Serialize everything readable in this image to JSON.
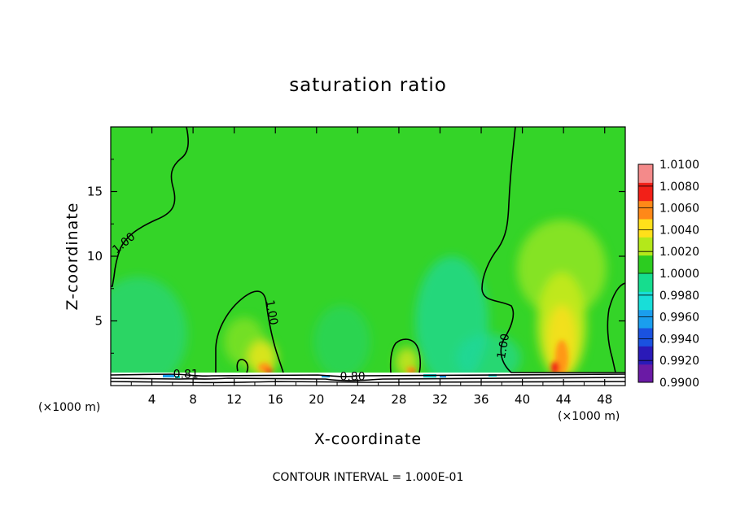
{
  "chart_data": {
    "type": "heatmap",
    "title": "saturation ratio",
    "xlabel": "X-coordinate",
    "ylabel": "Z-coordinate",
    "x_unit_left": "(×1000 m)",
    "x_unit_right": "(×1000 m)",
    "xlim": [
      0,
      50
    ],
    "ylim": [
      0,
      20
    ],
    "x_ticks": [
      4,
      8,
      12,
      16,
      20,
      24,
      28,
      32,
      36,
      40,
      44,
      48
    ],
    "y_ticks": [
      5,
      10,
      15
    ],
    "colorbar": {
      "levels": [
        0.99,
        0.992,
        0.994,
        0.996,
        0.998,
        1.0,
        1.002,
        1.004,
        1.006,
        1.008,
        1.01
      ],
      "labels": [
        "0.9900",
        "0.9920",
        "0.9940",
        "0.9960",
        "0.9980",
        "1.0000",
        "1.0020",
        "1.0040",
        "1.0060",
        "1.0080",
        "1.0100"
      ],
      "colors": [
        "#6a1aa5",
        "#2a1ab8",
        "#1a52e0",
        "#1a9eee",
        "#18ded8",
        "#16dd8e",
        "#2ccc20",
        "#b4e81a",
        "#ffe01a",
        "#ff8818",
        "#f22018",
        "#f48a8a"
      ]
    },
    "background_value": 1.001,
    "updrafts": [
      {
        "x": 15.5,
        "z_top": 7.0,
        "peak": 1.007
      },
      {
        "x": 29.0,
        "z_top": 3.5,
        "peak": 1.006
      },
      {
        "x": 43.5,
        "z_top": 9.0,
        "peak": 1.008
      }
    ],
    "contour_labels": [
      {
        "text": "1.00",
        "x": 1.5,
        "z": 10.8
      },
      {
        "text": "1.00",
        "x": 15.3,
        "z": 5.6
      },
      {
        "text": "1.00",
        "x": 38.5,
        "z": 3.0
      },
      {
        "text": "0.80",
        "x": 23.5,
        "z": 0.4
      },
      {
        "text": "0.81",
        "x": 7.3,
        "z": 0.6
      }
    ],
    "contour_interval_note": "CONTOUR INTERVAL = 1.000E-01"
  }
}
